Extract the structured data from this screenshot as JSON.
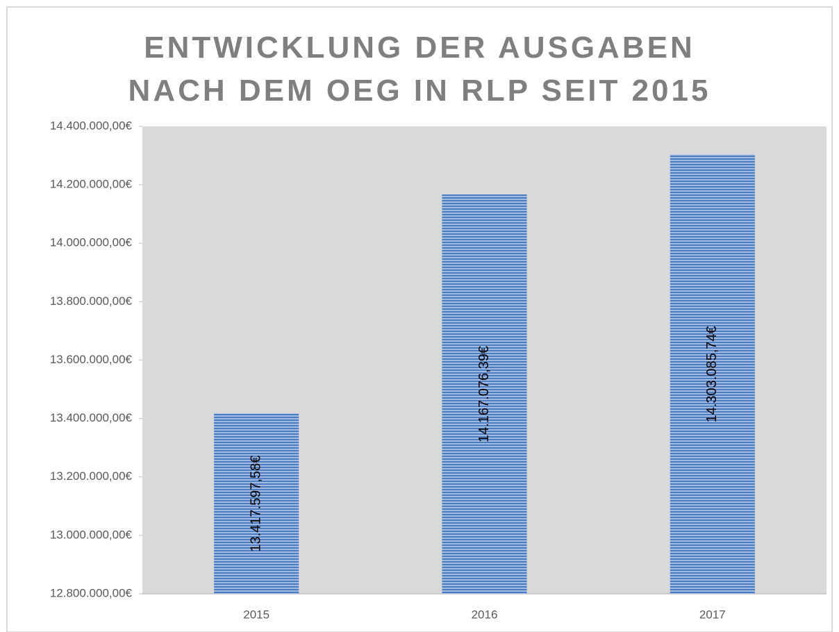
{
  "chart_data": {
    "type": "bar",
    "title": "ENTWICKLUNG DER AUSGABEN NACH DEM OEG IN RLP SEIT 2015",
    "categories": [
      "2015",
      "2016",
      "2017"
    ],
    "values": [
      13417597.58,
      14167076.39,
      14303085.74
    ],
    "value_labels": [
      "13.417.597,58€",
      "14.167.076,39€",
      "14.303.085,74€"
    ],
    "color": "#4a7cc4",
    "ylim": [
      12800000,
      14400000
    ],
    "yticks": [
      {
        "value": 12800000,
        "label": "12.800.000,00€"
      },
      {
        "value": 13000000,
        "label": "13.000.000,00€"
      },
      {
        "value": 13200000,
        "label": "13.200.000,00€"
      },
      {
        "value": 13400000,
        "label": "13.400.000,00€"
      },
      {
        "value": 13600000,
        "label": "13.600.000,00€"
      },
      {
        "value": 13800000,
        "label": "13.800.000,00€"
      },
      {
        "value": 14000000,
        "label": "14.000.000,00€"
      },
      {
        "value": 14200000,
        "label": "14.200.000,00€"
      },
      {
        "value": 14400000,
        "label": "14.400.000,00€"
      }
    ]
  }
}
